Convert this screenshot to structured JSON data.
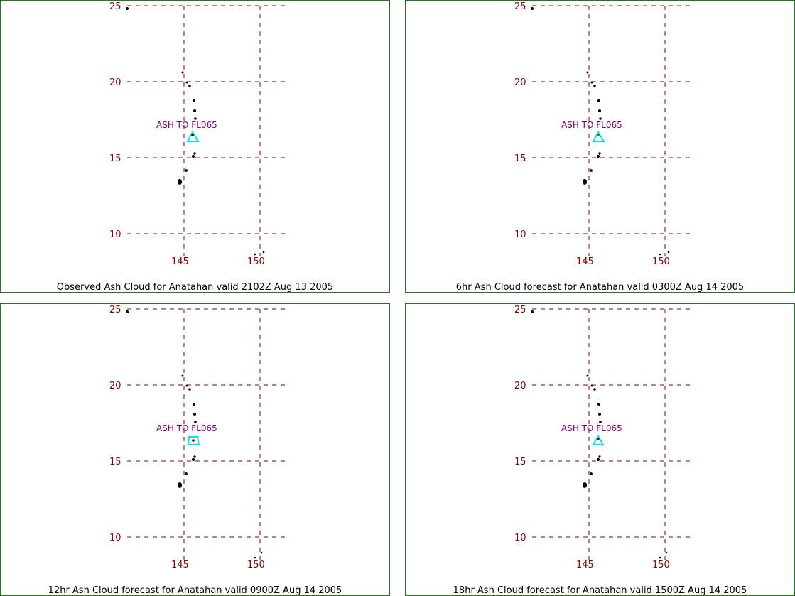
{
  "panels": [
    {
      "caption": "Observed Ash Cloud for Anatahan valid 2102Z Aug 13 2005",
      "ash_label": "ASH TO FL065"
    },
    {
      "caption": "6hr Ash Cloud forecast for Anatahan valid 0300Z Aug 14 2005",
      "ash_label": "ASH TO FL065"
    },
    {
      "caption": "12hr Ash Cloud forecast for Anatahan valid 0900Z Aug 14 2005",
      "ash_label": "ASH TO FL065"
    },
    {
      "caption": "18hr Ash Cloud forecast for Anatahan valid 1500Z Aug 14 2005",
      "ash_label": "ASH TO FL065"
    }
  ],
  "grid": {
    "latitudes": [
      "25",
      "20",
      "15",
      "10"
    ],
    "longitudes": [
      "145",
      "150"
    ]
  },
  "colors": {
    "gridline": "#8b0000",
    "tick_label": "#8b0000",
    "ash_label": "#800080",
    "ash_cloud": "#00e5e5",
    "coastline": "#000000",
    "panel_border": "#1f7a1f"
  },
  "icons": {
    "volcano_marker": "triangle-icon"
  }
}
